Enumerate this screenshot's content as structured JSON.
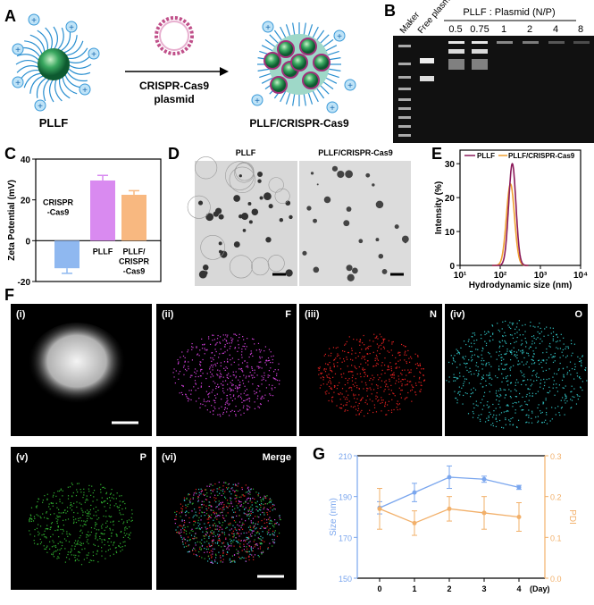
{
  "panels": {
    "A": "A",
    "B": "B",
    "C": "C",
    "D": "D",
    "E": "E",
    "F": "F",
    "G": "G"
  },
  "panel_a": {
    "left_label": "PLLF",
    "arrow_label_1": "CRISPR-Cas9",
    "arrow_label_2": "plasmid",
    "right_label": "PLLF/CRISPR-Cas9",
    "plus": "+",
    "minus": "-"
  },
  "panel_b": {
    "lane_labels": [
      "Maker",
      "Free plasmid"
    ],
    "group_label": "PLLF : Plasmid (N/P)",
    "ratios": [
      "0.5",
      "0.75",
      "1",
      "2",
      "4",
      "8"
    ]
  },
  "panel_d": {
    "left_title": "PLLF",
    "right_title": "PLLF/CRISPR-Cas9"
  },
  "panel_f": {
    "tiles": [
      {
        "tag": "(i)",
        "element": ""
      },
      {
        "tag": "(ii)",
        "element": "F"
      },
      {
        "tag": "(iii)",
        "element": "N"
      },
      {
        "tag": "(iv)",
        "element": "O"
      },
      {
        "tag": "(v)",
        "element": "P"
      },
      {
        "tag": "(vi)",
        "element": "Merge"
      }
    ]
  },
  "colors": {
    "blue": "#8fb8f0",
    "violet": "#d98af0",
    "orange": "#f8b880",
    "pllf_line": "#8b1a5a",
    "orange_line": "#f0a030",
    "g_blue": "#7aa6ee",
    "g_orange": "#f2b06a"
  },
  "chart_data": [
    {
      "id": "C",
      "type": "bar",
      "ylabel": "Zeta Potential (mV)",
      "ylim": [
        -20,
        40
      ],
      "yticks": [
        "40",
        "20",
        "0",
        "-20"
      ],
      "yticks_v": [
        40,
        20,
        0,
        -20
      ],
      "categories": [
        "CRISPR -Cas9",
        "PLLF",
        "PLLF/ CRISPR -Cas9"
      ],
      "category_lines": [
        [
          "CRISPR",
          "-Cas9"
        ],
        [
          "PLLF"
        ],
        [
          "PLLF/",
          "CRISPR",
          "-Cas9"
        ]
      ],
      "values": [
        -13.5,
        29.5,
        22.5
      ],
      "errors": [
        2.5,
        2.5,
        2
      ]
    },
    {
      "id": "E",
      "type": "line",
      "xlabel": "Hydrodynamic size (nm)",
      "ylabel": "Intensity (%)",
      "xscale": "log",
      "xlim": [
        10,
        10000
      ],
      "ylim": [
        0,
        34
      ],
      "xticks": [
        "10¹",
        "10²",
        "10³",
        "10⁴"
      ],
      "yticks": [
        "0",
        "10",
        "20",
        "30"
      ],
      "yticks_v": [
        0,
        10,
        20,
        30
      ],
      "legend": "top",
      "series": [
        {
          "name": "PLLF",
          "peak_nm": 200,
          "peak": 30,
          "log_sigma": 0.09
        },
        {
          "name": "PLLF/CRISPR-Cas9",
          "peak_nm": 180,
          "peak": 24,
          "log_sigma": 0.1
        }
      ]
    },
    {
      "id": "G",
      "type": "line",
      "xlabel": "(Day)",
      "ylabel": "Size (nm)",
      "ylabel2": "PDI",
      "x": [
        0,
        1,
        2,
        3,
        4
      ],
      "xticks": [
        "0",
        "1",
        "2",
        "3",
        "4"
      ],
      "ylim": [
        150,
        210
      ],
      "yticks": [
        "210",
        "190",
        "170",
        "150"
      ],
      "yticks_v": [
        210,
        190,
        170,
        150
      ],
      "ylim2": [
        0,
        0.3
      ],
      "yticks2": [
        "0.3",
        "0.2",
        "0.1",
        "0.0"
      ],
      "yticks2_v": [
        0.3,
        0.2,
        0.1,
        0
      ],
      "series": [
        {
          "name": "Size",
          "values": [
            184.5,
            192,
            199.5,
            198.5,
            194.5
          ],
          "errors": [
            3,
            4.5,
            5.5,
            1.5,
            1
          ]
        },
        {
          "name": "PDI",
          "axis": "right",
          "values": [
            0.17,
            0.135,
            0.17,
            0.16,
            0.15
          ],
          "errors": [
            0.05,
            0.03,
            0.03,
            0.04,
            0.035
          ]
        }
      ]
    }
  ]
}
